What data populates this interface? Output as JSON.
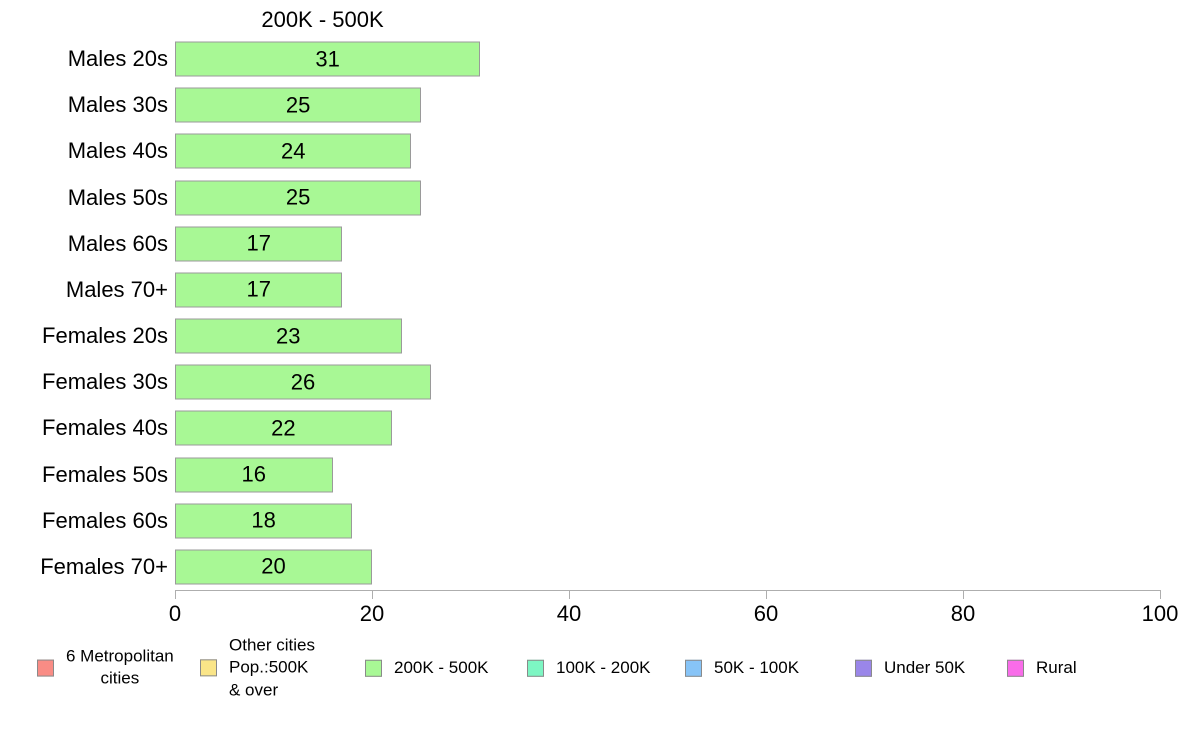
{
  "chart_data": {
    "type": "bar",
    "orientation": "horizontal",
    "title": "200K - 500K",
    "categories": [
      "Males 20s",
      "Males 30s",
      "Males 40s",
      "Males 50s",
      "Males 60s",
      "Males 70+",
      "Females 20s",
      "Females 30s",
      "Females 40s",
      "Females 50s",
      "Females 60s",
      "Females 70+"
    ],
    "values": [
      31,
      25,
      24,
      25,
      17,
      17,
      23,
      26,
      22,
      16,
      18,
      20
    ],
    "xlabel": "",
    "ylabel": "",
    "xlim": [
      0,
      100
    ],
    "x_ticks": [
      0,
      20,
      40,
      60,
      80,
      100
    ],
    "grid": false,
    "bar_labels_shown": true,
    "bar_color": "#A8F895",
    "axis_color": "#AEAEAE",
    "legend_position": "bottom",
    "legend": [
      {
        "label": "6 Metropolitan\ncities",
        "color": "#F98C85"
      },
      {
        "label": "Other cities\nPop.:500K\n& over",
        "color": "#FAE588"
      },
      {
        "label": "200K - 500K",
        "color": "#A8F895"
      },
      {
        "label": "100K - 200K",
        "color": "#7DF6C3"
      },
      {
        "label": "50K - 100K",
        "color": "#87C4F7"
      },
      {
        "label": "Under 50K",
        "color": "#9A86E9"
      },
      {
        "label": "Rural",
        "color": "#F96CE9"
      }
    ]
  }
}
